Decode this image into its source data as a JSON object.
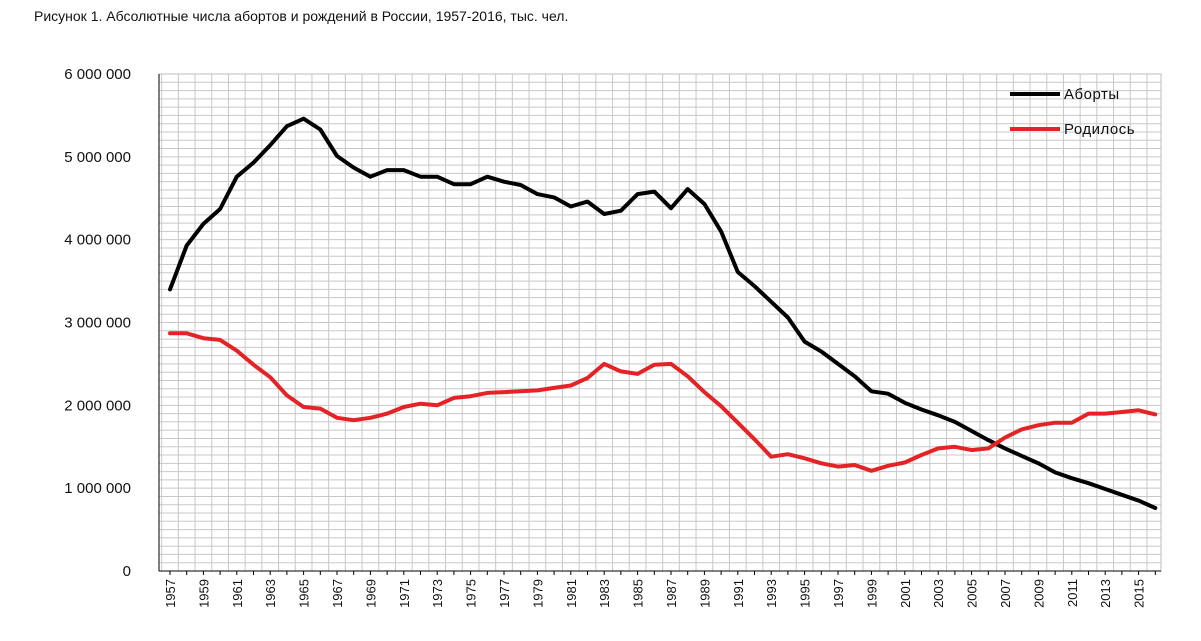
{
  "title": "Рисунок 1. Абсолютные числа абортов и рождений в России, 1957-2016, тыс. чел.",
  "chart_data": {
    "type": "line",
    "title": "Рисунок 1. Абсолютные числа абортов и рождений в России, 1957-2016, тыс. чел.",
    "xlabel": "",
    "ylabel": "",
    "x": [
      1957,
      1958,
      1959,
      1960,
      1961,
      1962,
      1963,
      1964,
      1965,
      1966,
      1967,
      1968,
      1969,
      1970,
      1971,
      1972,
      1973,
      1974,
      1975,
      1976,
      1977,
      1978,
      1979,
      1980,
      1981,
      1982,
      1983,
      1984,
      1985,
      1986,
      1987,
      1988,
      1989,
      1990,
      1991,
      1992,
      1993,
      1994,
      1995,
      1996,
      1997,
      1998,
      1999,
      2000,
      2001,
      2002,
      2003,
      2004,
      2005,
      2006,
      2007,
      2008,
      2009,
      2010,
      2011,
      2012,
      2013,
      2014,
      2015,
      2016
    ],
    "x_ticks": [
      "1957",
      "1959",
      "1961",
      "1963",
      "1965",
      "1967",
      "1969",
      "1971",
      "1973",
      "1975",
      "1977",
      "1979",
      "1981",
      "1983",
      "1985",
      "1987",
      "1989",
      "1991",
      "1993",
      "1995",
      "1997",
      "1999",
      "2001",
      "2003",
      "2005",
      "2007",
      "2009",
      "2011",
      "2013",
      "2015"
    ],
    "y_ticks": [
      "0",
      "1 000 000",
      "2 000 000",
      "3 000 000",
      "4 000 000",
      "5 000 000",
      "6 000 000"
    ],
    "ylim": [
      0,
      6000000
    ],
    "grid": true,
    "legend_position": "top-right",
    "series": [
      {
        "name": "Аборты",
        "color": "#000000",
        "values": [
          3400000,
          3930000,
          4190000,
          4370000,
          4760000,
          4930000,
          5140000,
          5370000,
          5460000,
          5330000,
          5010000,
          4870000,
          4760000,
          4840000,
          4840000,
          4760000,
          4760000,
          4670000,
          4670000,
          4760000,
          4700000,
          4660000,
          4550000,
          4510000,
          4400000,
          4460000,
          4310000,
          4350000,
          4550000,
          4580000,
          4380000,
          4610000,
          4430000,
          4100000,
          3610000,
          3440000,
          3250000,
          3060000,
          2770000,
          2650000,
          2500000,
          2350000,
          2170000,
          2140000,
          2030000,
          1950000,
          1880000,
          1800000,
          1690000,
          1580000,
          1480000,
          1390000,
          1300000,
          1190000,
          1120000,
          1060000,
          990000,
          920000,
          850000,
          760000
        ]
      },
      {
        "name": "Родилось",
        "color": "#e32326",
        "values": [
          2870000,
          2870000,
          2810000,
          2790000,
          2660000,
          2490000,
          2340000,
          2120000,
          1980000,
          1960000,
          1850000,
          1820000,
          1850000,
          1900000,
          1980000,
          2020000,
          2000000,
          2090000,
          2110000,
          2150000,
          2160000,
          2170000,
          2180000,
          2210000,
          2240000,
          2330000,
          2500000,
          2410000,
          2380000,
          2490000,
          2500000,
          2350000,
          2160000,
          1990000,
          1790000,
          1590000,
          1380000,
          1410000,
          1360000,
          1300000,
          1260000,
          1280000,
          1210000,
          1270000,
          1310000,
          1400000,
          1480000,
          1500000,
          1460000,
          1480000,
          1610000,
          1710000,
          1760000,
          1790000,
          1790000,
          1900000,
          1900000,
          1920000,
          1940000,
          1890000
        ]
      }
    ]
  }
}
